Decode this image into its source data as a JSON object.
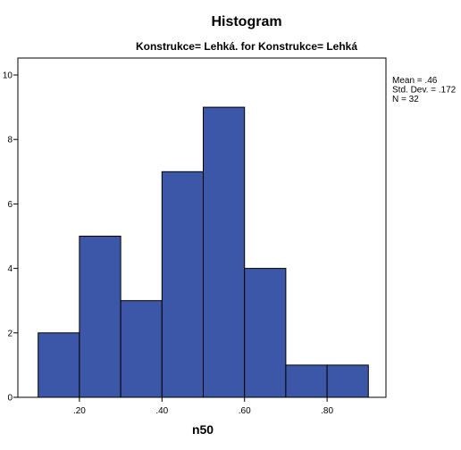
{
  "chart_data": {
    "type": "bar",
    "title": "Histogram",
    "subtitle": "Konstrukce= Lehká. for Konstrukce= Lehká",
    "xlabel": "n50",
    "ylabel": "",
    "bins": [
      {
        "start": 0.1,
        "end": 0.2,
        "count": 2
      },
      {
        "start": 0.2,
        "end": 0.3,
        "count": 5
      },
      {
        "start": 0.3,
        "end": 0.4,
        "count": 3
      },
      {
        "start": 0.4,
        "end": 0.5,
        "count": 7
      },
      {
        "start": 0.5,
        "end": 0.6,
        "count": 9
      },
      {
        "start": 0.6,
        "end": 0.7,
        "count": 4
      },
      {
        "start": 0.7,
        "end": 0.8,
        "count": 1
      },
      {
        "start": 0.8,
        "end": 0.9,
        "count": 1
      }
    ],
    "xlim": [
      0.0,
      1.0
    ],
    "ylim": [
      0,
      10
    ],
    "x_ticks": [
      {
        "value": 0.2,
        "label": ".20"
      },
      {
        "value": 0.4,
        "label": ".40"
      },
      {
        "value": 0.6,
        "label": ".60"
      },
      {
        "value": 0.8,
        "label": ".80"
      }
    ],
    "y_ticks": [
      {
        "value": 0,
        "label": "0"
      },
      {
        "value": 2,
        "label": "2"
      },
      {
        "value": 4,
        "label": "4"
      },
      {
        "value": 6,
        "label": "6"
      },
      {
        "value": 8,
        "label": "8"
      },
      {
        "value": 10,
        "label": "10"
      }
    ],
    "stats": [
      "Mean = .46",
      "Std. Dev. = .172",
      "N = 32"
    ],
    "grid": false,
    "bar_color": "#3c57a8",
    "edge_color": "#000000"
  }
}
